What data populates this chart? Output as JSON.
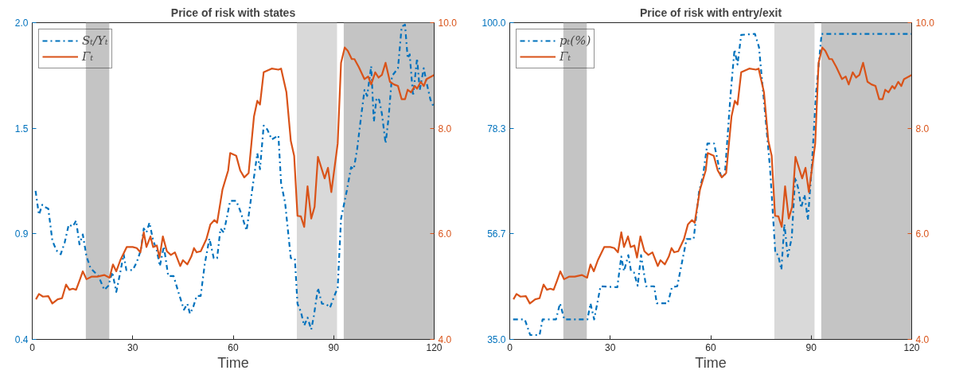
{
  "chart_data": [
    {
      "type": "line",
      "title": "Price of risk with states",
      "xlabel": "Time",
      "xlim": [
        0,
        120
      ],
      "xticks": [
        0,
        30,
        60,
        90,
        120
      ],
      "ylim": [
        0.4,
        2.0
      ],
      "yticks": [
        {
          "value": 0.4,
          "label": "0.4"
        },
        {
          "value": 0.9333,
          "label": "0.9"
        },
        {
          "value": 1.4667,
          "label": "1.5"
        },
        {
          "value": 2.0,
          "label": "2.0"
        }
      ],
      "y2lim": [
        4,
        10
      ],
      "y2ticks": [
        {
          "value": 4,
          "label": "4.0"
        },
        {
          "value": 6,
          "label": "6.0"
        },
        {
          "value": 8,
          "label": "8.0"
        },
        {
          "value": 10,
          "label": "10.0"
        }
      ],
      "legend": "top left",
      "grid": false,
      "bands": [
        {
          "axis": "x",
          "from": 16,
          "to": 23,
          "color": "#c4c4c4"
        },
        {
          "axis": "x",
          "from": 79,
          "to": 91,
          "color": "#d9d9d9"
        },
        {
          "axis": "x",
          "from": 93,
          "to": 120,
          "color": "#c4c4c4"
        }
      ],
      "series": [
        {
          "name": "Sₜ/Yₜ",
          "color": "#0072bd",
          "line_style": "dashed",
          "x": [
            1,
            2,
            3,
            3.6,
            4.8,
            6,
            7.2,
            8.5,
            9.7,
            10.9,
            12.1,
            13.1,
            14.1,
            15.1,
            16.2,
            17.4,
            18.6,
            19.8,
            21.5,
            22.7,
            23.9,
            25.1,
            26.3,
            27.3,
            28.1,
            30,
            31.2,
            32.4,
            33.3,
            34.1,
            35,
            36.1,
            37.2,
            38.1,
            39.3,
            40.6,
            42.2,
            43.8,
            45.3,
            46.3,
            47.1,
            48,
            49.1,
            50.3,
            51.5,
            52.9,
            54.2,
            55.2,
            56.2,
            57.2,
            59.1,
            60.9,
            62.1,
            64,
            65.8,
            67.2,
            68,
            69.1,
            70.2,
            71.5,
            73.5,
            74.3,
            75.5,
            77.2,
            78.4,
            79.2,
            80.2,
            81.2,
            82.2,
            83.3,
            84.1,
            85.3,
            86.5,
            87.7,
            88.9,
            90.2,
            91.2,
            92.2,
            93.9,
            95.2,
            96,
            97,
            98,
            99.2,
            100,
            101.2,
            102,
            102.8,
            103.6,
            104.4,
            105.5,
            106.4,
            107.4,
            109.2,
            110.3,
            111.3,
            112.1,
            112.7,
            113.7,
            114.9,
            115.7,
            116.9,
            117.7,
            118.9,
            120
          ],
          "values": [
            1.15,
            1.03,
            1.08,
            1.07,
            1.06,
            0.9,
            0.85,
            0.83,
            0.89,
            0.98,
            0.97,
            1.0,
            0.88,
            0.93,
            0.82,
            0.76,
            0.74,
            0.72,
            0.65,
            0.67,
            0.74,
            0.64,
            0.74,
            0.83,
            0.75,
            0.75,
            0.79,
            0.85,
            0.96,
            0.94,
            0.99,
            0.9,
            0.85,
            0.77,
            0.87,
            0.72,
            0.72,
            0.63,
            0.55,
            0.58,
            0.53,
            0.56,
            0.62,
            0.62,
            0.78,
            0.91,
            0.81,
            0.81,
            0.96,
            0.94,
            1.1,
            1.1,
            1.05,
            0.95,
            1.17,
            1.34,
            1.26,
            1.48,
            1.46,
            1.41,
            1.43,
            1.19,
            1.09,
            0.81,
            0.81,
            0.58,
            0.54,
            0.47,
            0.51,
            0.45,
            0.52,
            0.66,
            0.58,
            0.58,
            0.56,
            0.62,
            0.66,
            1.01,
            1.15,
            1.27,
            1.26,
            1.36,
            1.5,
            1.66,
            1.63,
            1.78,
            1.5,
            1.62,
            1.61,
            1.54,
            1.39,
            1.52,
            1.73,
            1.77,
            1.98,
            1.99,
            1.82,
            1.84,
            1.63,
            1.82,
            1.66,
            1.77,
            1.7,
            1.61,
            1.57
          ]
        },
        {
          "name": "Γₜ",
          "color": "#d95319",
          "line_style": "solid",
          "axis": "y2",
          "x": [
            1.1,
            2,
            3.2,
            4.8,
            6,
            7.6,
            8.9,
            10.1,
            11.1,
            12.1,
            13.1,
            14.1,
            15.1,
            16.2,
            17.8,
            19.4,
            21.5,
            23.1,
            24.1,
            25.1,
            26.3,
            28.2,
            30,
            31.2,
            32.3,
            33.3,
            34.1,
            35.3,
            36.1,
            37.2,
            38,
            39,
            40.2,
            41.4,
            42.6,
            44.2,
            45,
            46.3,
            47.5,
            48.3,
            49.1,
            50.3,
            52,
            53.2,
            54.4,
            55.2,
            56.8,
            58.5,
            59.1,
            60.9,
            62.1,
            63.3,
            64.6,
            66.2,
            67.2,
            68,
            69.1,
            71.5,
            73.5,
            74.3,
            75.9,
            77.2,
            78.2,
            79.2,
            80.2,
            81.2,
            82.2,
            83.3,
            84.3,
            85.3,
            87.3,
            88.3,
            89.3,
            91.2,
            92.2,
            93.3,
            94.2,
            95.4,
            96.2,
            97.5,
            99.2,
            100.3,
            101.2,
            102.4,
            103.4,
            104.4,
            105.5,
            106.8,
            108,
            109.2,
            110.3,
            111.3,
            112.1,
            113.1,
            114.2,
            114.9,
            116,
            116.9,
            117.7,
            120
          ],
          "values": [
            4.76,
            4.86,
            4.81,
            4.82,
            4.68,
            4.76,
            4.78,
            5.04,
            4.94,
            4.96,
            4.94,
            5.11,
            5.29,
            5.14,
            5.19,
            5.19,
            5.22,
            5.17,
            5.42,
            5.29,
            5.5,
            5.75,
            5.75,
            5.73,
            5.65,
            6.03,
            5.75,
            5.95,
            5.75,
            5.78,
            5.55,
            5.95,
            5.67,
            5.6,
            5.65,
            5.39,
            5.5,
            5.42,
            5.57,
            5.73,
            5.65,
            5.67,
            5.9,
            6.18,
            6.26,
            6.21,
            6.84,
            7.2,
            7.53,
            7.48,
            7.2,
            7.07,
            7.15,
            8.22,
            8.52,
            8.45,
            9.06,
            9.13,
            9.11,
            9.13,
            8.68,
            7.76,
            7.48,
            6.34,
            6.33,
            6.13,
            6.9,
            6.29,
            6.51,
            7.46,
            7.05,
            7.25,
            6.79,
            7.71,
            9.24,
            9.53,
            9.47,
            9.31,
            9.31,
            9.16,
            8.93,
            8.98,
            8.83,
            9.06,
            8.96,
            9.01,
            9.24,
            8.88,
            8.83,
            8.8,
            8.55,
            8.55,
            8.73,
            8.68,
            8.8,
            8.75,
            8.88,
            8.8,
            8.93,
            9.01
          ]
        }
      ]
    },
    {
      "type": "line",
      "title": "Price of risk with entry/exit",
      "xlabel": "Time",
      "xlim": [
        0,
        120
      ],
      "xticks": [
        0,
        30,
        60,
        90,
        120
      ],
      "ylim": [
        35,
        100
      ],
      "yticks": [
        {
          "value": 35,
          "label": "35.0"
        },
        {
          "value": 56.667,
          "label": "56.7"
        },
        {
          "value": 78.333,
          "label": "78.3"
        },
        {
          "value": 100,
          "label": "100.0"
        }
      ],
      "y2lim": [
        4,
        10
      ],
      "y2ticks": [
        {
          "value": 4,
          "label": "4.0"
        },
        {
          "value": 6,
          "label": "6.0"
        },
        {
          "value": 8,
          "label": "8.0"
        },
        {
          "value": 10,
          "label": "10.0"
        }
      ],
      "legend": "top left",
      "grid": false,
      "bands": [
        {
          "axis": "x",
          "from": 16,
          "to": 23,
          "color": "#c4c4c4"
        },
        {
          "axis": "x",
          "from": 79,
          "to": 91,
          "color": "#d9d9d9"
        },
        {
          "axis": "x",
          "from": 93,
          "to": 120,
          "color": "#c4c4c4"
        }
      ],
      "series": [
        {
          "name": "pₜ(%)",
          "color": "#0072bd",
          "line_style": "dashed",
          "x": [
            1,
            4.5,
            6.1,
            8.9,
            9.8,
            13.8,
            15,
            16.3,
            23.2,
            24.1,
            25.2,
            27.1,
            32.1,
            33.3,
            34.1,
            35.4,
            36.2,
            37.1,
            38.2,
            39.2,
            40.7,
            43.1,
            43.9,
            47.2,
            48.4,
            50,
            52.8,
            54.9,
            56.5,
            57.7,
            59,
            61,
            63,
            64.2,
            65.9,
            67.1,
            68,
            69.1,
            73.2,
            74.4,
            76.1,
            77.7,
            79.3,
            80.1,
            81.1,
            82,
            83,
            84.2,
            85.2,
            86.2,
            87,
            88,
            89,
            90.2,
            91.4,
            93.1,
            120
          ],
          "values": [
            39.1,
            39.1,
            35.9,
            35.9,
            39.1,
            39.1,
            42.4,
            39.1,
            39.1,
            42.4,
            39.1,
            45.9,
            45.7,
            52.0,
            49.0,
            52.3,
            49.0,
            48.7,
            46.0,
            52.3,
            45.9,
            45.9,
            42.4,
            42.4,
            45.7,
            45.9,
            55.6,
            55.6,
            65.3,
            68.6,
            75.2,
            75.2,
            68.6,
            68.6,
            85.1,
            94.5,
            91.4,
            97.5,
            97.7,
            95.0,
            82.4,
            70.2,
            52.6,
            52.4,
            49.3,
            58.7,
            52.0,
            55.9,
            68.3,
            65.8,
            62.0,
            64.7,
            59.5,
            70.8,
            85.1,
            97.7,
            97.7
          ]
        },
        {
          "name": "Γₜ",
          "color": "#d95319",
          "line_style": "solid",
          "axis": "y2",
          "x": [
            1.1,
            2,
            3.2,
            4.8,
            6,
            7.6,
            8.9,
            10.1,
            11.1,
            12.1,
            13.1,
            14.1,
            15.1,
            16.2,
            17.8,
            19.4,
            21.5,
            23.1,
            24.1,
            25.1,
            26.3,
            28.2,
            30,
            31.2,
            32.3,
            33.3,
            34.1,
            35.3,
            36.1,
            37.2,
            38,
            39,
            40.2,
            41.4,
            42.6,
            44.2,
            45,
            46.3,
            47.5,
            48.3,
            49.1,
            50.3,
            52,
            53.2,
            54.4,
            55.2,
            56.8,
            58.5,
            59.1,
            60.9,
            62.1,
            63.3,
            64.6,
            66.2,
            67.2,
            68,
            69.1,
            71.5,
            73.5,
            74.3,
            75.9,
            77.2,
            78.2,
            79.2,
            80.2,
            81.2,
            82.2,
            83.3,
            84.3,
            85.3,
            87.3,
            88.3,
            89.3,
            91.2,
            92.2,
            93.3,
            94.2,
            95.4,
            96.2,
            97.5,
            99.2,
            100.3,
            101.2,
            102.4,
            103.4,
            104.4,
            105.5,
            106.8,
            108,
            109.2,
            110.3,
            111.3,
            112.1,
            113.1,
            114.2,
            114.9,
            116,
            116.9,
            117.7,
            120
          ],
          "values": [
            4.76,
            4.86,
            4.81,
            4.82,
            4.68,
            4.76,
            4.78,
            5.04,
            4.94,
            4.96,
            4.94,
            5.11,
            5.29,
            5.14,
            5.19,
            5.19,
            5.22,
            5.17,
            5.42,
            5.29,
            5.5,
            5.75,
            5.75,
            5.73,
            5.65,
            6.03,
            5.75,
            5.95,
            5.75,
            5.78,
            5.55,
            5.95,
            5.67,
            5.6,
            5.65,
            5.39,
            5.5,
            5.42,
            5.57,
            5.73,
            5.65,
            5.67,
            5.9,
            6.18,
            6.26,
            6.21,
            6.84,
            7.2,
            7.53,
            7.48,
            7.2,
            7.07,
            7.15,
            8.22,
            8.52,
            8.45,
            9.06,
            9.13,
            9.11,
            9.13,
            8.68,
            7.76,
            7.48,
            6.34,
            6.33,
            6.13,
            6.9,
            6.29,
            6.51,
            7.46,
            7.05,
            7.25,
            6.79,
            7.71,
            9.24,
            9.53,
            9.47,
            9.31,
            9.31,
            9.16,
            8.93,
            8.98,
            8.83,
            9.06,
            8.96,
            9.01,
            9.24,
            8.88,
            8.83,
            8.8,
            8.55,
            8.55,
            8.73,
            8.68,
            8.8,
            8.75,
            8.88,
            8.8,
            8.93,
            9.01
          ]
        }
      ]
    }
  ]
}
